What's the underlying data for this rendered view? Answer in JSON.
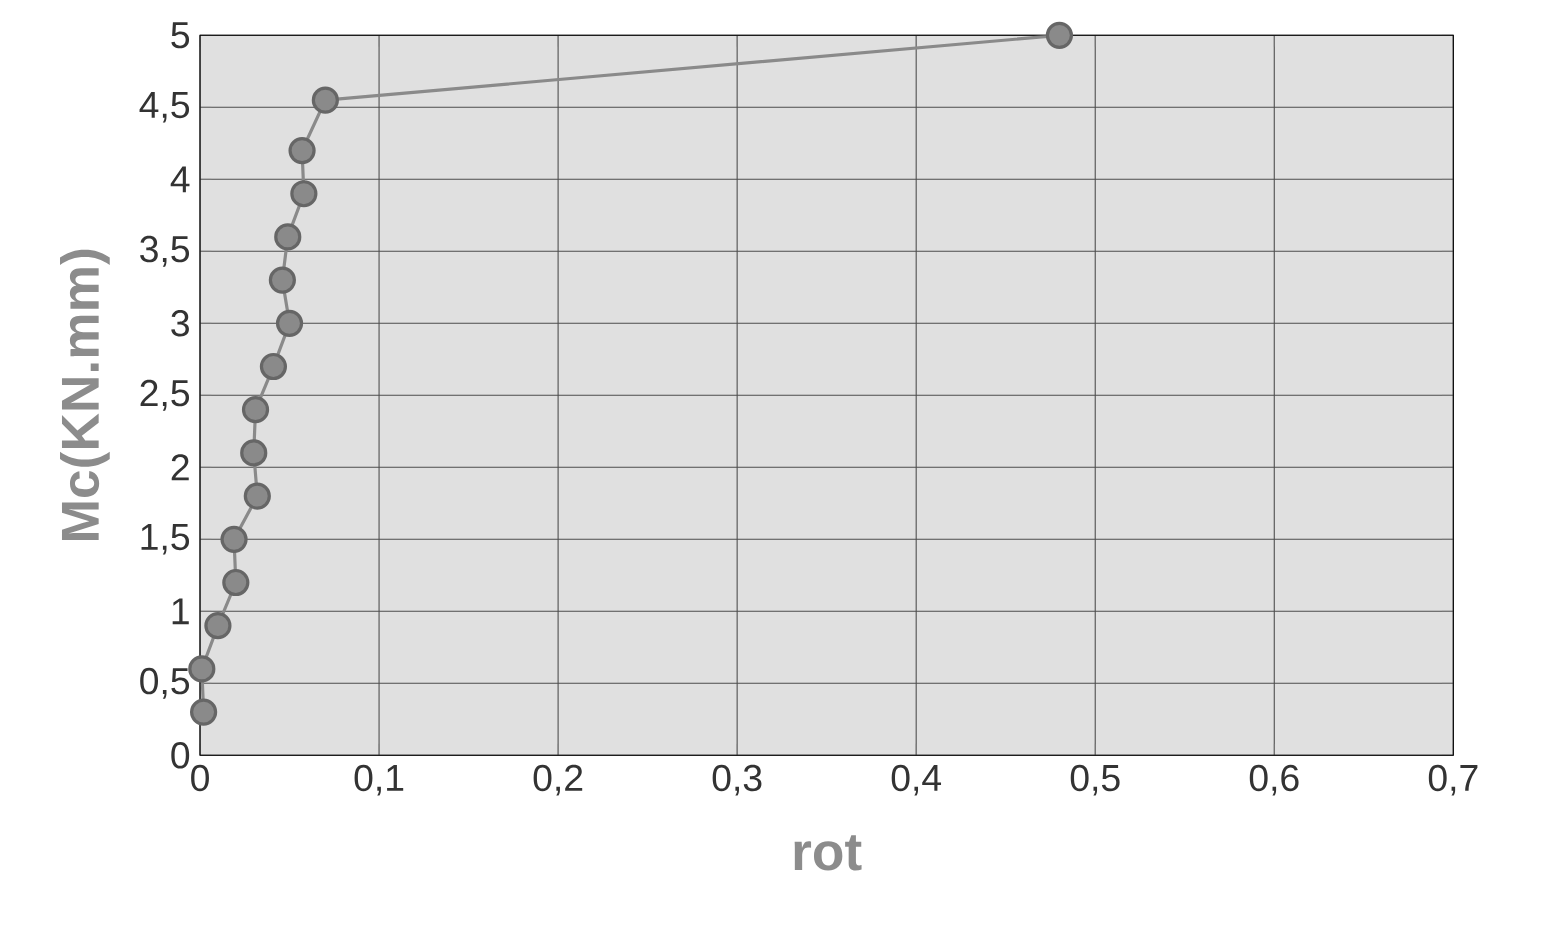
{
  "chart_data": {
    "type": "line",
    "xlabel": "rot",
    "ylabel": "Mc(KN.mm)",
    "series": [
      {
        "color": "#8a8a8a",
        "x": [
          0.002,
          0.001,
          0.01,
          0.02,
          0.019,
          0.032,
          0.03,
          0.031,
          0.041,
          0.05,
          0.046,
          0.049,
          0.058,
          0.057,
          0.07,
          0.48
        ],
        "values": [
          0.3,
          0.6,
          0.9,
          1.2,
          1.5,
          1.8,
          2.1,
          2.4,
          2.7,
          3.0,
          3.3,
          3.6,
          3.9,
          4.2,
          4.55,
          5.0
        ]
      }
    ],
    "xlim": [
      0,
      0.7
    ],
    "ylim": [
      0,
      5
    ],
    "xticks": [
      0,
      {
        "value": 0.1,
        "label": "0,1"
      },
      {
        "value": 0.2,
        "label": "0,2"
      },
      {
        "value": 0.3,
        "label": "0,3"
      },
      {
        "value": 0.4,
        "label": "0,4"
      },
      {
        "value": 0.5,
        "label": "0,5"
      },
      {
        "value": 0.6,
        "label": "0,6"
      },
      {
        "value": 0.7,
        "label": "0,7"
      }
    ],
    "yticks": [
      0,
      {
        "value": 0.5,
        "label": "0,5"
      },
      1,
      {
        "value": 1.5,
        "label": "1,5"
      },
      2,
      {
        "value": 2.5,
        "label": "2,5"
      },
      3,
      {
        "value": 3.5,
        "label": "3,5"
      },
      4,
      {
        "value": 4.5,
        "label": "4,5"
      },
      5
    ],
    "grid": true,
    "marker": "circle",
    "line_style": "solid"
  }
}
